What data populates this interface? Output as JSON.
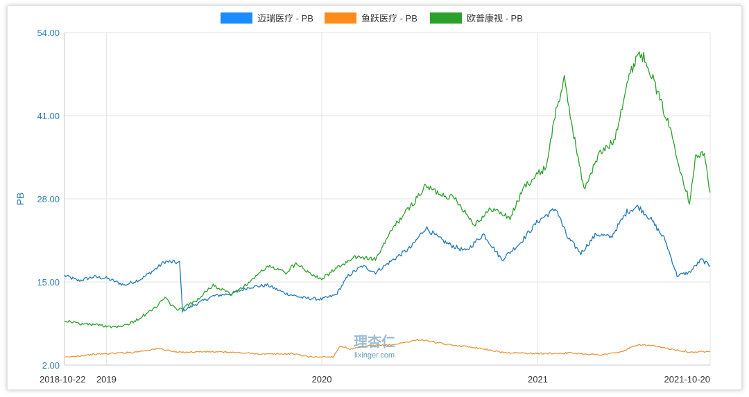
{
  "chart_data": {
    "type": "line",
    "title": "",
    "ylabel": "PB",
    "xlabel": "",
    "ylim": [
      2,
      54
    ],
    "xlim": [
      "2018-10-22",
      "2021-10-20"
    ],
    "yticks": [
      2,
      15,
      28,
      41,
      54
    ],
    "ytick_labels": [
      "2.00",
      "15.00",
      "28.00",
      "41.00",
      "54.00"
    ],
    "xticks": [
      {
        "date": "2018-10-22",
        "label": "2018-10-22"
      },
      {
        "date": "2019-01-01",
        "label": "2019"
      },
      {
        "date": "2020-01-01",
        "label": "2020"
      },
      {
        "date": "2021-01-01",
        "label": "2021"
      },
      {
        "date": "2021-10-20",
        "label": "2021-10-20"
      }
    ],
    "grid": true,
    "legend_position": "top",
    "watermark": {
      "top": "理杏仁",
      "bottom": "lixinger.com"
    },
    "series": [
      {
        "name": "迈瑞医疗 - PB",
        "color": "#1f78b4",
        "legend_color": "#1a8cff",
        "points": [
          [
            "2018-10-22",
            16.0
          ],
          [
            "2018-11-15",
            15.2
          ],
          [
            "2018-12-10",
            15.8
          ],
          [
            "2019-01-01",
            15.6
          ],
          [
            "2019-02-01",
            14.5
          ],
          [
            "2019-03-01",
            15.5
          ],
          [
            "2019-03-25",
            17.0
          ],
          [
            "2019-04-10",
            18.2
          ],
          [
            "2019-05-05",
            18.0
          ],
          [
            "2019-05-10",
            10.5
          ],
          [
            "2019-06-01",
            11.5
          ],
          [
            "2019-07-01",
            12.8
          ],
          [
            "2019-08-01",
            13.2
          ],
          [
            "2019-09-01",
            14.2
          ],
          [
            "2019-10-01",
            14.5
          ],
          [
            "2019-11-01",
            13.2
          ],
          [
            "2019-12-01",
            12.5
          ],
          [
            "2020-01-01",
            12.3
          ],
          [
            "2020-01-25",
            13.0
          ],
          [
            "2020-02-15",
            16.0
          ],
          [
            "2020-03-10",
            17.5
          ],
          [
            "2020-04-01",
            16.5
          ],
          [
            "2020-05-01",
            18.5
          ],
          [
            "2020-06-01",
            20.5
          ],
          [
            "2020-06-25",
            23.5
          ],
          [
            "2020-07-15",
            22.0
          ],
          [
            "2020-08-01",
            21.0
          ],
          [
            "2020-09-01",
            19.8
          ],
          [
            "2020-10-01",
            22.5
          ],
          [
            "2020-11-01",
            18.5
          ],
          [
            "2020-12-01",
            21.0
          ],
          [
            "2021-01-01",
            24.5
          ],
          [
            "2021-02-01",
            26.5
          ],
          [
            "2021-02-20",
            22.0
          ],
          [
            "2021-03-15",
            19.5
          ],
          [
            "2021-04-10",
            22.5
          ],
          [
            "2021-05-05",
            22.0
          ],
          [
            "2021-06-01",
            26.0
          ],
          [
            "2021-06-20",
            26.8
          ],
          [
            "2021-07-10",
            25.0
          ],
          [
            "2021-08-05",
            21.5
          ],
          [
            "2021-08-25",
            16.0
          ],
          [
            "2021-09-15",
            16.5
          ],
          [
            "2021-10-05",
            18.5
          ],
          [
            "2021-10-20",
            17.5
          ]
        ]
      },
      {
        "name": "鱼跃医疗 - PB",
        "color": "#e8963c",
        "legend_color": "#ff8c1a",
        "points": [
          [
            "2018-10-22",
            3.2
          ],
          [
            "2018-12-01",
            3.6
          ],
          [
            "2019-01-01",
            3.8
          ],
          [
            "2019-02-15",
            4.0
          ],
          [
            "2019-04-01",
            4.6
          ],
          [
            "2019-05-01",
            4.0
          ],
          [
            "2019-06-15",
            4.1
          ],
          [
            "2019-08-01",
            4.0
          ],
          [
            "2019-10-01",
            3.7
          ],
          [
            "2019-11-15",
            3.8
          ],
          [
            "2019-12-10",
            3.3
          ],
          [
            "2020-01-20",
            3.3
          ],
          [
            "2020-02-01",
            5.0
          ],
          [
            "2020-02-20",
            4.5
          ],
          [
            "2020-03-20",
            5.0
          ],
          [
            "2020-05-01",
            5.2
          ],
          [
            "2020-06-15",
            6.0
          ],
          [
            "2020-08-01",
            5.2
          ],
          [
            "2020-09-15",
            4.8
          ],
          [
            "2020-11-01",
            4.0
          ],
          [
            "2021-01-01",
            3.8
          ],
          [
            "2021-03-01",
            3.9
          ],
          [
            "2021-04-15",
            3.6
          ],
          [
            "2021-05-20",
            4.0
          ],
          [
            "2021-06-20",
            5.2
          ],
          [
            "2021-07-15",
            5.0
          ],
          [
            "2021-08-15",
            4.5
          ],
          [
            "2021-09-20",
            4.0
          ],
          [
            "2021-10-20",
            4.2
          ]
        ]
      },
      {
        "name": "欧普康视 - PB",
        "color": "#2ca02c",
        "legend_color": "#2ca02c",
        "points": [
          [
            "2018-10-22",
            9.0
          ],
          [
            "2018-11-15",
            8.5
          ],
          [
            "2018-12-15",
            8.3
          ],
          [
            "2019-01-15",
            8.0
          ],
          [
            "2019-02-10",
            8.5
          ],
          [
            "2019-03-01",
            9.5
          ],
          [
            "2019-03-25",
            11.0
          ],
          [
            "2019-04-10",
            12.5
          ],
          [
            "2019-05-01",
            10.5
          ],
          [
            "2019-06-01",
            12.0
          ],
          [
            "2019-07-01",
            14.5
          ],
          [
            "2019-08-01",
            13.0
          ],
          [
            "2019-09-01",
            15.0
          ],
          [
            "2019-10-01",
            17.5
          ],
          [
            "2019-11-01",
            16.5
          ],
          [
            "2019-11-20",
            18.0
          ],
          [
            "2019-12-10",
            16.5
          ],
          [
            "2020-01-01",
            15.5
          ],
          [
            "2020-02-01",
            17.5
          ],
          [
            "2020-03-01",
            19.0
          ],
          [
            "2020-04-01",
            18.5
          ],
          [
            "2020-05-01",
            23.5
          ],
          [
            "2020-06-01",
            27.0
          ],
          [
            "2020-06-25",
            30.0
          ],
          [
            "2020-07-15",
            29.0
          ],
          [
            "2020-08-15",
            28.0
          ],
          [
            "2020-09-15",
            24.0
          ],
          [
            "2020-10-15",
            26.5
          ],
          [
            "2020-11-15",
            25.0
          ],
          [
            "2020-12-10",
            30.0
          ],
          [
            "2021-01-15",
            33.0
          ],
          [
            "2021-02-01",
            42.0
          ],
          [
            "2021-02-15",
            46.5
          ],
          [
            "2021-03-01",
            39.0
          ],
          [
            "2021-03-20",
            29.5
          ],
          [
            "2021-04-15",
            35.0
          ],
          [
            "2021-05-10",
            37.0
          ],
          [
            "2021-06-01",
            46.0
          ],
          [
            "2021-06-20",
            51.0
          ],
          [
            "2021-07-05",
            49.5
          ],
          [
            "2021-07-25",
            44.0
          ],
          [
            "2021-08-15",
            38.5
          ],
          [
            "2021-09-01",
            32.0
          ],
          [
            "2021-09-15",
            27.5
          ],
          [
            "2021-09-25",
            34.5
          ],
          [
            "2021-10-10",
            35.0
          ],
          [
            "2021-10-20",
            29.0
          ]
        ]
      }
    ]
  }
}
